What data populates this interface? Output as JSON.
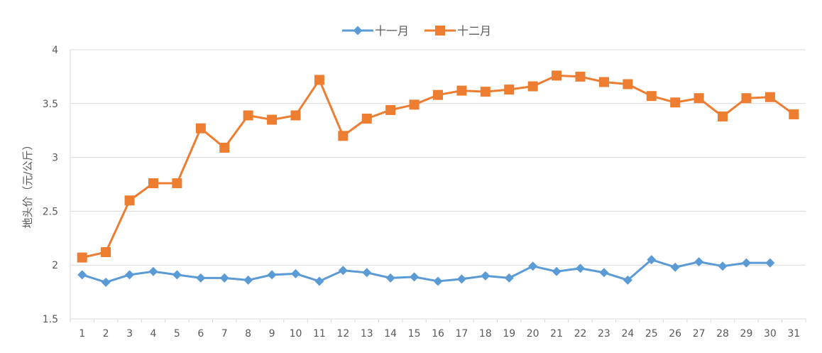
{
  "chart_data": {
    "type": "line",
    "title": "",
    "xlabel": "",
    "ylabel": "地头价（元/公斤）",
    "categories": [
      "1",
      "2",
      "3",
      "4",
      "5",
      "6",
      "7",
      "8",
      "9",
      "10",
      "11",
      "12",
      "13",
      "14",
      "15",
      "16",
      "17",
      "18",
      "19",
      "20",
      "21",
      "22",
      "23",
      "24",
      "25",
      "26",
      "27",
      "28",
      "29",
      "30",
      "31"
    ],
    "ylim": [
      1.5,
      4
    ],
    "yticks": [
      "1.5",
      "2",
      "2.5",
      "3",
      "3.5",
      "4"
    ],
    "grid": true,
    "legend_position": "top",
    "series": [
      {
        "name": "十一月",
        "color": "#5b9bd5",
        "marker": "diamond",
        "values": [
          1.91,
          1.84,
          1.91,
          1.94,
          1.91,
          1.88,
          1.88,
          1.86,
          1.91,
          1.92,
          1.85,
          1.95,
          1.93,
          1.88,
          1.89,
          1.85,
          1.87,
          1.9,
          1.88,
          1.99,
          1.94,
          1.97,
          1.93,
          1.86,
          2.05,
          1.98,
          2.03,
          1.99,
          2.02,
          2.02,
          null
        ]
      },
      {
        "name": "十二月",
        "color": "#ed7d31",
        "marker": "square",
        "values": [
          2.07,
          2.12,
          2.6,
          2.76,
          2.76,
          3.27,
          3.09,
          3.39,
          3.35,
          3.39,
          3.72,
          3.2,
          3.36,
          3.44,
          3.49,
          3.58,
          3.62,
          3.61,
          3.63,
          3.66,
          3.76,
          3.75,
          3.7,
          3.68,
          3.57,
          3.51,
          3.55,
          3.38,
          3.55,
          3.56,
          3.4
        ]
      }
    ]
  }
}
